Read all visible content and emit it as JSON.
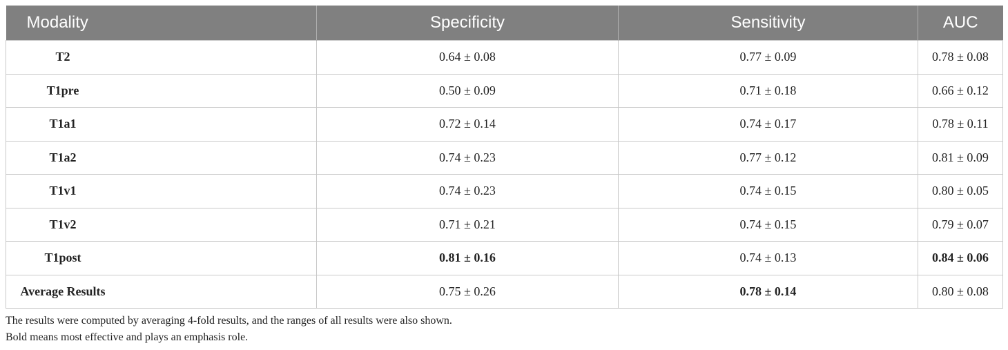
{
  "table": {
    "header": [
      "Modality",
      "Specificity",
      "Sensitivity",
      "AUC"
    ],
    "rows": [
      [
        "T2",
        "0.64 ± 0.08",
        "0.77 ± 0.09",
        "0.78 ± 0.08"
      ],
      [
        "T1pre",
        "0.50 ± 0.09",
        "0.71 ± 0.18",
        "0.66 ± 0.12"
      ],
      [
        "T1a1",
        "0.72 ± 0.14",
        "0.74 ± 0.17",
        "0.78 ± 0.11"
      ],
      [
        "T1a2",
        "0.74 ± 0.23",
        "0.77 ± 0.12",
        "0.81 ± 0.09"
      ],
      [
        "T1v1",
        "0.74 ± 0.23",
        "0.74 ± 0.15",
        "0.80 ± 0.05"
      ],
      [
        "T1v2",
        "0.71 ± 0.21",
        "0.74 ± 0.15",
        "0.79 ± 0.07"
      ],
      [
        "T1post",
        "0.81 ± 0.16",
        "0.74 ± 0.13",
        "0.84 ± 0.06"
      ],
      [
        "Average Results",
        "0.75 ± 0.26",
        "0.78 ± 0.14",
        "0.80 ± 0.08"
      ]
    ]
  },
  "footnotes": [
    "The results were computed by averaging 4-fold results, and the ranges of all results were also shown.",
    "Bold means most effective and plays an emphasis role."
  ]
}
